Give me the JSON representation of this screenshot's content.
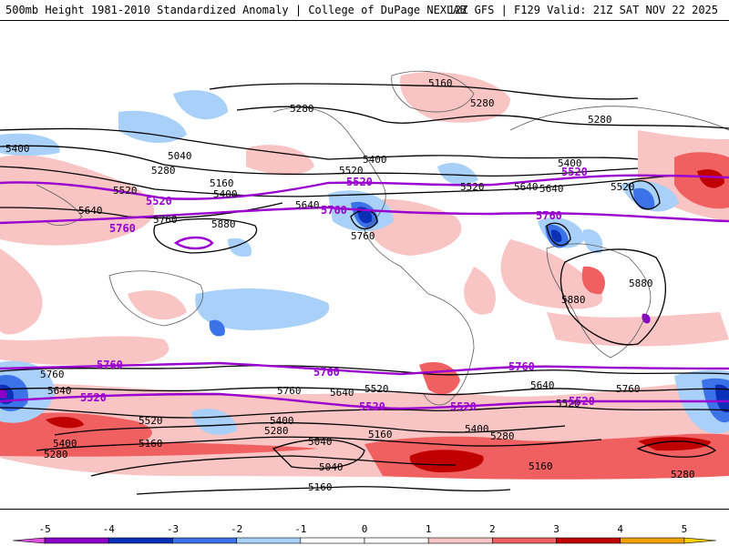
{
  "header": {
    "left_title": "500mb Height 1981-2010 Standardized Anomaly | College of DuPage NEXLAB",
    "right_title": "12Z GFS | F129 Valid: 21Z SAT NOV 22 2025"
  },
  "colors": {
    "contour_black": "#000000",
    "contour_purple": "#9a00d0",
    "coast": "#5a5a5a"
  },
  "colorbar": {
    "ticks": [
      "-5",
      "-4",
      "-3",
      "-2",
      "-1",
      "0",
      "1",
      "2",
      "3",
      "4",
      "5"
    ],
    "bins": [
      {
        "from": -5.5,
        "to": -5,
        "color": "#e050e0"
      },
      {
        "from": -5,
        "to": -4,
        "color": "#8a00c8"
      },
      {
        "from": -4,
        "to": -3,
        "color": "#0a30b8"
      },
      {
        "from": -3,
        "to": -2,
        "color": "#3c72e8"
      },
      {
        "from": -2,
        "to": -1,
        "color": "#a8d0f8"
      },
      {
        "from": -1,
        "to": 0,
        "color": "#ffffff"
      },
      {
        "from": 0,
        "to": 1,
        "color": "#ffffff"
      },
      {
        "from": 1,
        "to": 2,
        "color": "#f8c4c4"
      },
      {
        "from": 2,
        "to": 3,
        "color": "#f06060"
      },
      {
        "from": 3,
        "to": 4,
        "color": "#c00000"
      },
      {
        "from": 4,
        "to": 5,
        "color": "#f0a000"
      },
      {
        "from": 5,
        "to": 5.5,
        "color": "#f8d000"
      }
    ]
  },
  "contour_labels": [
    {
      "text": "5160"
    },
    {
      "text": "5280"
    },
    {
      "text": "5280"
    },
    {
      "text": "5280"
    },
    {
      "text": "5400"
    },
    {
      "text": "5040"
    },
    {
      "text": "5280"
    },
    {
      "text": "5160"
    },
    {
      "text": "5520"
    },
    {
      "text": "5400"
    },
    {
      "text": "5400"
    },
    {
      "text": "5520"
    },
    {
      "text": "5640"
    },
    {
      "text": "5640"
    },
    {
      "text": "5760"
    },
    {
      "text": "5880"
    },
    {
      "text": "5760"
    },
    {
      "text": "5640"
    },
    {
      "text": "5400"
    },
    {
      "text": "5520"
    },
    {
      "text": "5640"
    },
    {
      "text": "5760"
    },
    {
      "text": "5520"
    },
    {
      "text": "5880"
    },
    {
      "text": "5880"
    },
    {
      "text": "5760"
    },
    {
      "text": "5640"
    },
    {
      "text": "5760"
    },
    {
      "text": "5640"
    },
    {
      "text": "5520"
    },
    {
      "text": "5400"
    },
    {
      "text": "5280"
    },
    {
      "text": "5160"
    },
    {
      "text": "5040"
    },
    {
      "text": "5160"
    },
    {
      "text": "5040"
    },
    {
      "text": "5160"
    },
    {
      "text": "5520"
    },
    {
      "text": "5280"
    },
    {
      "text": "5400"
    },
    {
      "text": "5520"
    },
    {
      "text": "5760"
    },
    {
      "text": "5640"
    },
    {
      "text": "5520"
    },
    {
      "text": "5280"
    },
    {
      "text": "5160"
    },
    {
      "text": "5280"
    },
    {
      "text": "5400"
    },
    {
      "text": "5280"
    }
  ],
  "purple_labels": [
    {
      "text": "5520"
    },
    {
      "text": "5760"
    },
    {
      "text": "5520"
    },
    {
      "text": "5760"
    },
    {
      "text": "5520"
    },
    {
      "text": "5760"
    },
    {
      "text": "5760"
    },
    {
      "text": "5760"
    },
    {
      "text": "5760"
    },
    {
      "text": "5520"
    },
    {
      "text": "5520"
    },
    {
      "text": "5520"
    },
    {
      "text": "5520"
    }
  ]
}
